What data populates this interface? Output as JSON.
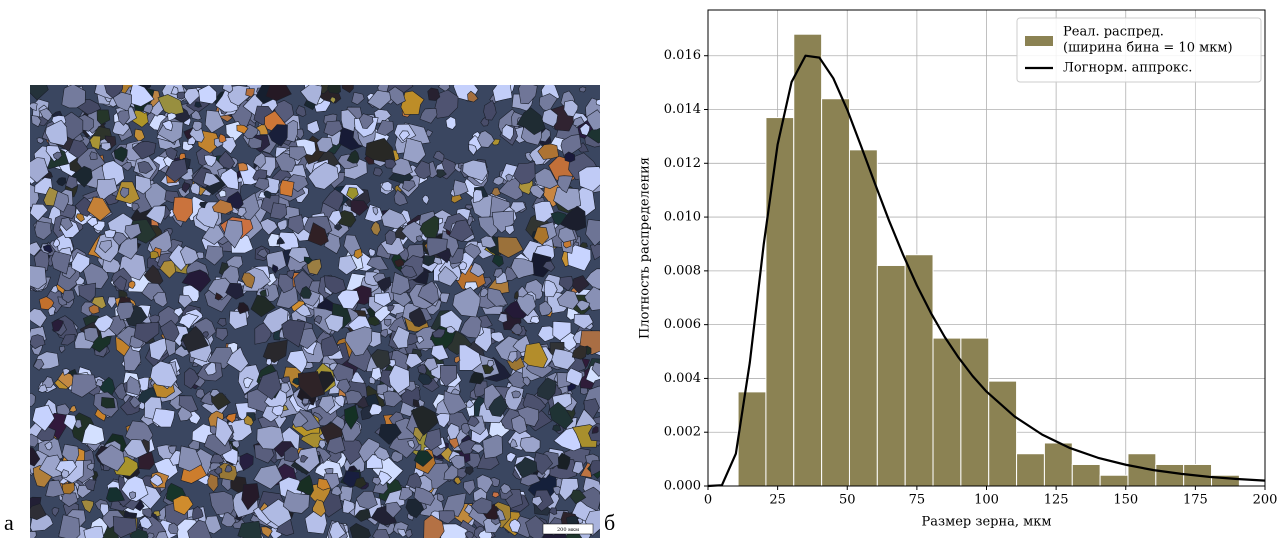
{
  "figure": {
    "panel_labels": [
      "а",
      "б"
    ],
    "scale_bar": "200 мкм"
  },
  "chart_data": {
    "type": "histogram",
    "x_label": "Размер зерна, мкм",
    "y_label": "Плотность распределения",
    "bins": [
      10.8,
      20.8,
      30.8,
      40.8,
      50.8,
      60.8,
      70.8,
      80.8,
      90.8,
      100.8,
      110.8,
      120.8,
      130.8,
      140.8,
      150.8,
      160.8,
      170.8,
      180.8,
      190.8
    ],
    "values": [
      0.0035,
      0.0137,
      0.0168,
      0.0144,
      0.0125,
      0.0082,
      0.0086,
      0.0055,
      0.0055,
      0.0039,
      0.0012,
      0.0016,
      0.0008,
      0.0004,
      0.0012,
      0.0008,
      0.0008,
      0.0004
    ],
    "name": [
      "Реал. распред.",
      "(ширина бина = 10 мкм)"
    ],
    "color": "#8b8253",
    "series": [
      {
        "type": "line",
        "name": "Логнорм. аппрокс.",
        "color": "#000000",
        "x": [
          0,
          5,
          10,
          15,
          20,
          25,
          30,
          35,
          40,
          45,
          50,
          55,
          60,
          65,
          70,
          75,
          80,
          85,
          90,
          95,
          100,
          110,
          120,
          130,
          140,
          150,
          160,
          170,
          180,
          190,
          200
        ],
        "values": [
          0,
          3e-05,
          0.0012,
          0.00458,
          0.00898,
          0.0127,
          0.01502,
          0.016,
          0.01593,
          0.01516,
          0.01399,
          0.01263,
          0.01123,
          0.00987,
          0.00861,
          0.00746,
          0.00644,
          0.00554,
          0.00477,
          0.00409,
          0.00351,
          0.00259,
          0.00191,
          0.00141,
          0.00105,
          0.00079,
          0.00059,
          0.00045,
          0.00034,
          0.00026,
          0.0002
        ]
      }
    ],
    "xlim": [
      0,
      200
    ],
    "ylim": [
      0,
      0.0177
    ],
    "xticks": [
      0,
      25,
      50,
      75,
      100,
      125,
      150,
      175,
      200
    ],
    "yticks": [
      {
        "value": 0,
        "label": "0.000"
      },
      {
        "value": 0.002,
        "label": "0.002"
      },
      {
        "value": 0.004,
        "label": "0.004"
      },
      {
        "value": 0.006,
        "label": "0.006"
      },
      {
        "value": 0.008,
        "label": "0.008"
      },
      {
        "value": 0.01,
        "label": "0.010"
      },
      {
        "value": 0.012,
        "label": "0.012"
      },
      {
        "value": 0.014,
        "label": "0.014"
      },
      {
        "value": 0.016,
        "label": "0.016"
      }
    ],
    "grid": true,
    "legend": "upper right"
  }
}
